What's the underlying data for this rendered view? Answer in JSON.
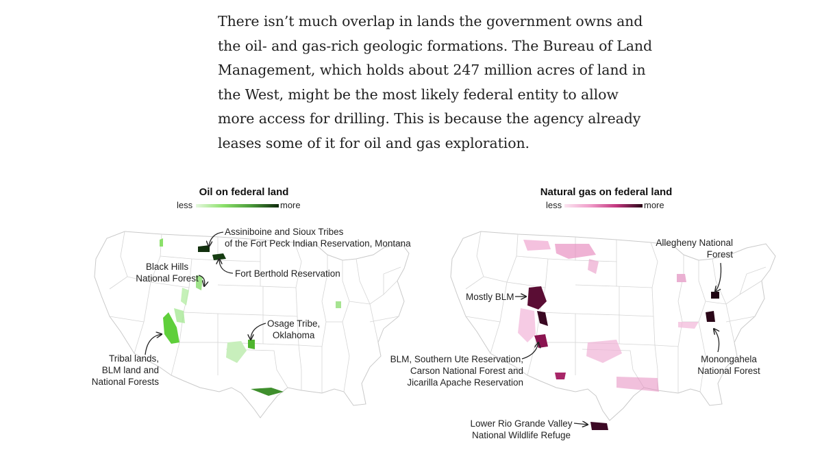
{
  "paragraph": "There isn’t much overlap in lands the government owns and the oil- and gas-rich geologic formations. The Bureau of Land Management, which holds about 247 million acres of land in the West, might be the most likely federal entity to allow more access for drilling. This is because the agency already leases some of it for oil and gas exploration.",
  "oil_map": {
    "title": "Oil on federal land",
    "legend_less": "less",
    "legend_more": "more",
    "colors": {
      "low": "#8be06a",
      "high": "#0f2a0c"
    },
    "annotations": {
      "assiniboine_1": "Assiniboine and Sioux Tribes",
      "assiniboine_2": "of the Fort Peck Indian Reservation, Montana",
      "fort_berthold": "Fort Berthold Reservation",
      "black_hills_1": "Black Hills",
      "black_hills_2": "National Forest",
      "osage_1": "Osage Tribe,",
      "osage_2": "Oklahoma",
      "tribal_1": "Tribal lands,",
      "tribal_2": "BLM land and",
      "tribal_3": "National Forests"
    }
  },
  "gas_map": {
    "title": "Natural gas on federal land",
    "legend_less": "less",
    "legend_more": "more",
    "colors": {
      "low": "#f5c8e2",
      "high": "#2a0718"
    },
    "annotations": {
      "mostly_blm": "Mostly BLM",
      "blm_1": "BLM, Southern Ute Reservation,",
      "blm_2": "Carson National Forest and",
      "blm_3": "Jicarilla Apache Reservation",
      "allegheny_1": "Allegheny National",
      "allegheny_2": "Forest",
      "monongahela_1": "Monongahela",
      "monongahela_2": "National Forest",
      "rio_1": "Lower Rio Grande Valley",
      "rio_2": "National Wildlife Refuge"
    }
  }
}
